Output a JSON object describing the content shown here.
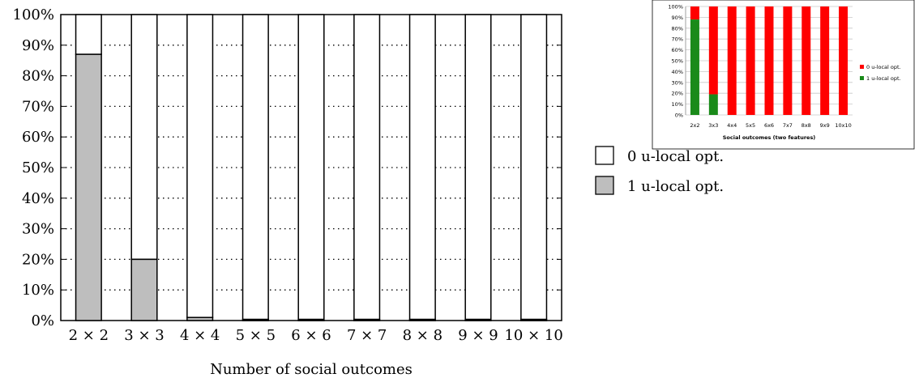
{
  "chart_data": [
    {
      "type": "bar",
      "stacked": true,
      "percent": true,
      "xlabel": "Number of social outcomes",
      "ylabel": "",
      "ylim": [
        0,
        100
      ],
      "yticks": [
        "0%",
        "10%",
        "20%",
        "30%",
        "40%",
        "50%",
        "60%",
        "70%",
        "80%",
        "90%",
        "100%"
      ],
      "grid": "dotted horizontal",
      "legend_position": "right",
      "categories": [
        "2 × 2",
        "3 × 3",
        "4 × 4",
        "5 × 5",
        "6 × 6",
        "7 × 7",
        "8 × 8",
        "9 × 9",
        "10 × 10"
      ],
      "series": [
        {
          "name": "1 u-local opt.",
          "color": "#bebebe",
          "values": [
            87,
            20,
            1,
            0,
            0,
            0,
            0,
            0,
            0
          ]
        },
        {
          "name": "0 u-local opt.",
          "color": "#ffffff",
          "values": [
            13,
            80,
            99,
            100,
            100,
            100,
            100,
            100,
            100
          ]
        }
      ]
    },
    {
      "type": "bar",
      "stacked": true,
      "percent": true,
      "xlabel": "Social outcomes (two features)",
      "ylim": [
        0,
        100
      ],
      "yticks": [
        "0%",
        "10%",
        "20%",
        "30%",
        "40%",
        "50%",
        "60%",
        "70%",
        "80%",
        "90%",
        "100%"
      ],
      "grid": "solid horizontal",
      "legend_position": "right",
      "categories": [
        "2x2",
        "3x3",
        "4x4",
        "5x5",
        "6x6",
        "7x7",
        "8x8",
        "9x9",
        "10x10"
      ],
      "series": [
        {
          "name": "1 u-local opt.",
          "color": "#1a8a1a",
          "values": [
            88,
            19,
            0,
            0,
            0,
            0,
            0,
            0,
            0
          ]
        },
        {
          "name": "0 u-local opt.",
          "color": "#ff0000",
          "values": [
            12,
            81,
            100,
            100,
            100,
            100,
            100,
            100,
            100
          ]
        }
      ]
    }
  ]
}
